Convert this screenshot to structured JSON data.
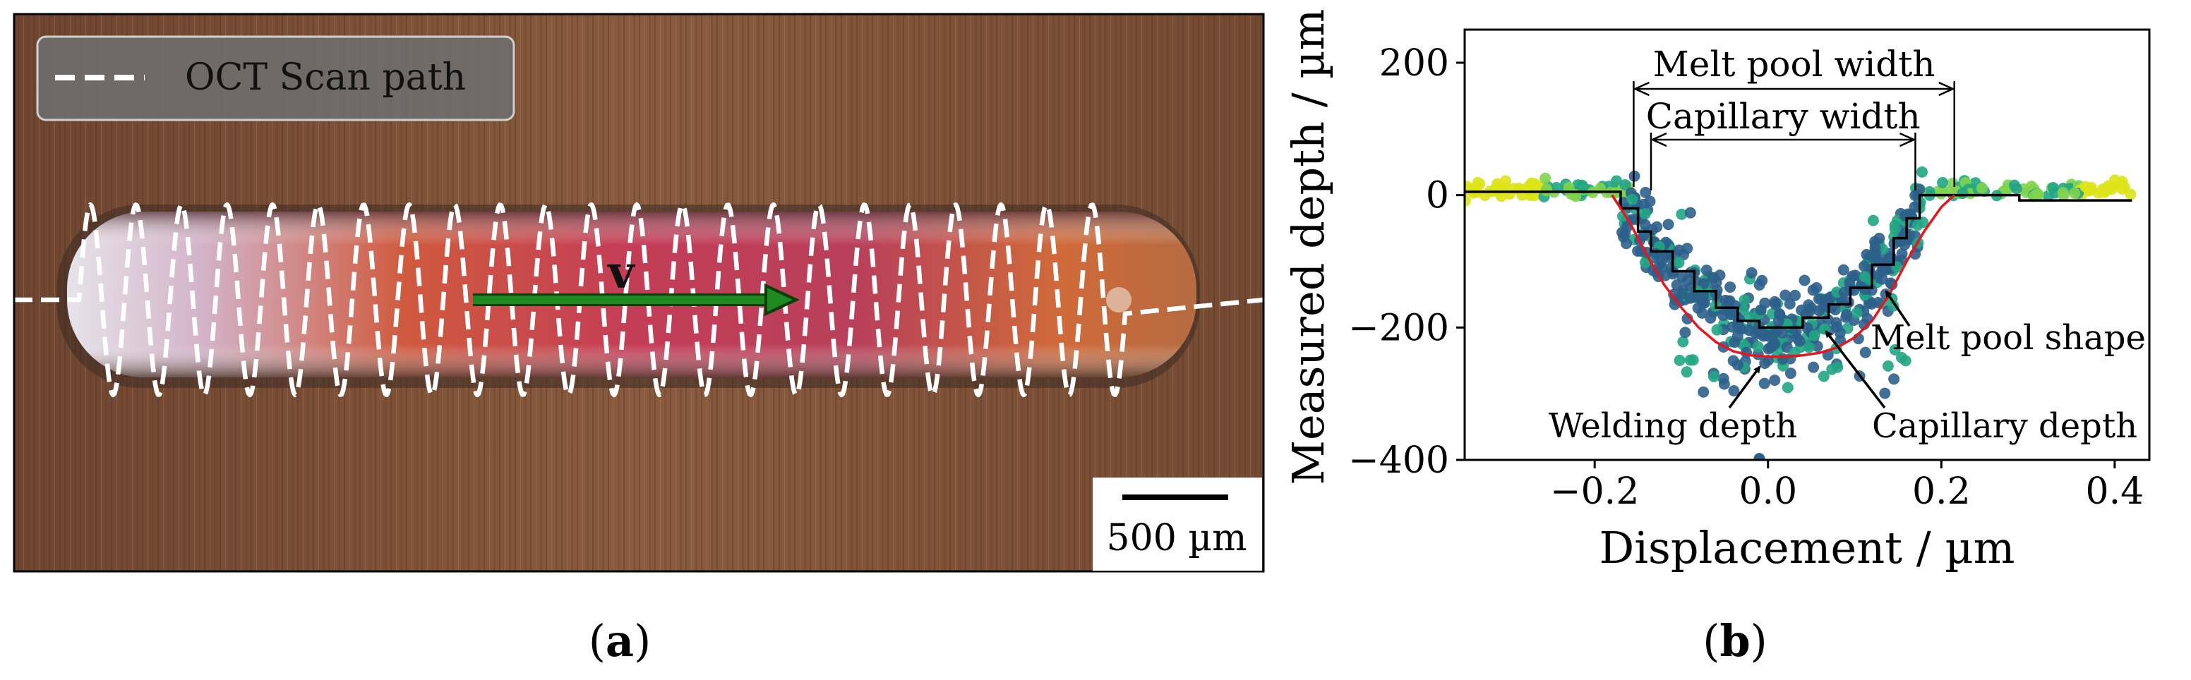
{
  "panel_a": {
    "legend_label": "OCT Scan path",
    "arrow_label": "v",
    "scale_bar_label": "500 µm",
    "caption": "(a)",
    "caption_letter": "a",
    "colors": {
      "scan_path": "#ffffff",
      "arrow": "#1f8a1f",
      "background": "#7a4f35",
      "seam": "#c84a52"
    }
  },
  "panel_b": {
    "caption": "(b)",
    "caption_letter": "b",
    "chart_data": {
      "type": "scatter",
      "title": "",
      "xlabel": "Displacement / µm",
      "ylabel": "Measured depth / µm",
      "xlim": [
        -0.35,
        0.44
      ],
      "ylim": [
        -400,
        250
      ],
      "xticks": [
        -0.2,
        0.0,
        0.2,
        0.4
      ],
      "xtick_labels": [
        "−0.2",
        "0.0",
        "0.2",
        "0.4"
      ],
      "yticks": [
        200,
        0,
        -200,
        -400
      ],
      "ytick_labels": [
        "200",
        "0",
        "−200",
        "−400"
      ],
      "grid": false,
      "annotations": {
        "melt_pool_width": "Melt pool width",
        "capillary_width": "Capillary width",
        "melt_pool_shape": "Melt pool shape",
        "welding_depth": "Welding depth",
        "capillary_depth": "Capillary depth"
      },
      "melt_pool_width_range": [
        -0.155,
        0.215
      ],
      "capillary_width_range": [
        -0.135,
        0.17
      ],
      "colors": {
        "melt_pool_shape": "#e8161c",
        "capillary_profile": "#000000",
        "scatter_low": "#2c5f8a",
        "scatter_mid": "#22a584",
        "scatter_high": "#dde318"
      },
      "capillary_profile": [
        [
          -0.35,
          5
        ],
        [
          -0.17,
          5
        ],
        [
          -0.17,
          -20
        ],
        [
          -0.15,
          -20
        ],
        [
          -0.15,
          -55
        ],
        [
          -0.135,
          -55
        ],
        [
          -0.135,
          -85
        ],
        [
          -0.11,
          -85
        ],
        [
          -0.11,
          -115
        ],
        [
          -0.085,
          -115
        ],
        [
          -0.085,
          -145
        ],
        [
          -0.06,
          -145
        ],
        [
          -0.06,
          -170
        ],
        [
          -0.035,
          -170
        ],
        [
          -0.035,
          -190
        ],
        [
          -0.01,
          -190
        ],
        [
          -0.01,
          -200
        ],
        [
          0.04,
          -200
        ],
        [
          0.04,
          -185
        ],
        [
          0.07,
          -185
        ],
        [
          0.07,
          -165
        ],
        [
          0.095,
          -165
        ],
        [
          0.095,
          -140
        ],
        [
          0.12,
          -140
        ],
        [
          0.12,
          -105
        ],
        [
          0.145,
          -105
        ],
        [
          0.145,
          -65
        ],
        [
          0.16,
          -65
        ],
        [
          0.16,
          -35
        ],
        [
          0.175,
          -35
        ],
        [
          0.175,
          0
        ],
        [
          0.29,
          0
        ],
        [
          0.29,
          -8
        ],
        [
          0.42,
          -8
        ]
      ],
      "melt_pool_shape_line": [
        [
          -0.18,
          0
        ],
        [
          -0.16,
          -40
        ],
        [
          -0.14,
          -90
        ],
        [
          -0.12,
          -135
        ],
        [
          -0.1,
          -170
        ],
        [
          -0.08,
          -200
        ],
        [
          -0.06,
          -222
        ],
        [
          -0.04,
          -236
        ],
        [
          -0.02,
          -242
        ],
        [
          0.0,
          -244
        ],
        [
          0.02,
          -244
        ],
        [
          0.04,
          -242
        ],
        [
          0.06,
          -238
        ],
        [
          0.08,
          -230
        ],
        [
          0.1,
          -215
        ],
        [
          0.12,
          -190
        ],
        [
          0.14,
          -150
        ],
        [
          0.16,
          -100
        ],
        [
          0.18,
          -55
        ],
        [
          0.2,
          -18
        ],
        [
          0.215,
          0
        ]
      ]
    }
  }
}
